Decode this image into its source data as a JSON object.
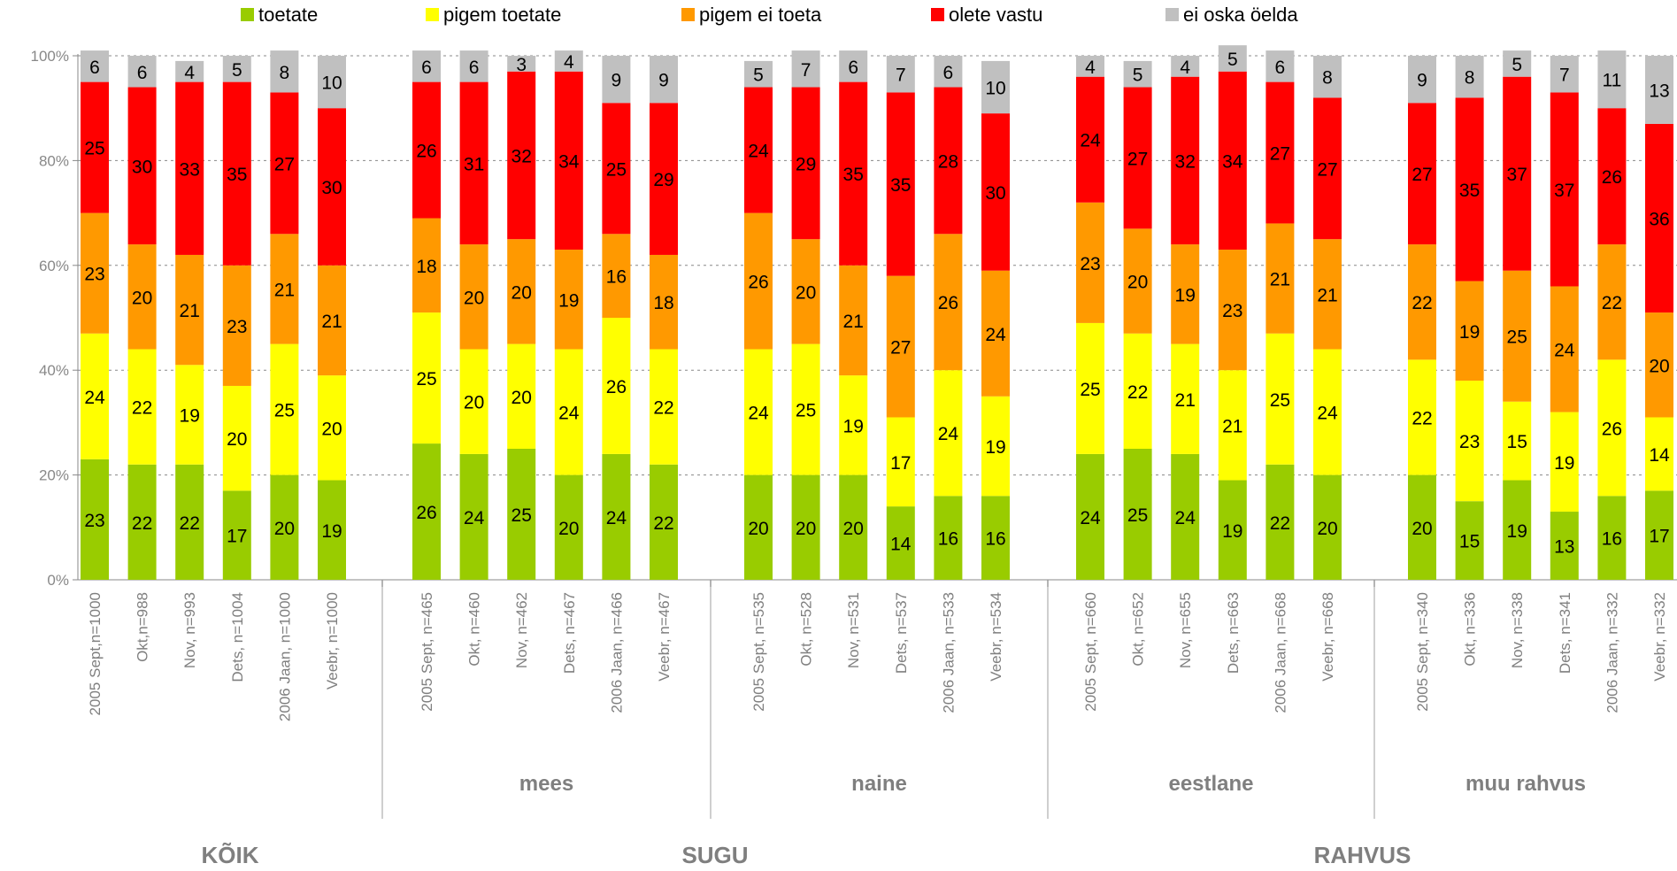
{
  "chart_data": {
    "type": "bar",
    "stacked": true,
    "percent": true,
    "ylim": [
      0,
      100
    ],
    "y_ticks": [
      "0%",
      "20%",
      "40%",
      "60%",
      "80%",
      "100%"
    ],
    "y_tick_values": [
      0,
      20,
      40,
      60,
      80,
      100
    ],
    "grid": true,
    "legend_position": "top",
    "legend": [
      {
        "name": "toetate",
        "color": "#99cc00"
      },
      {
        "name": "pigem toetate",
        "color": "#ffff00"
      },
      {
        "name": "pigem ei toeta",
        "color": "#ff9900"
      },
      {
        "name": "olete vastu",
        "color": "#ff0000"
      },
      {
        "name": "ei oska öelda",
        "color": "#c0c0c0"
      }
    ],
    "groups": [
      {
        "top_label": "KÕIK",
        "sub_label": "",
        "categories": [
          "2005 Sept,n=1000",
          "Okt,n=988",
          "Nov, n=993",
          "Dets, n=1004",
          "2006 Jaan, n=1000",
          "Veebr, n=1000"
        ],
        "values": [
          [
            23,
            24,
            23,
            25,
            6
          ],
          [
            22,
            22,
            20,
            30,
            6
          ],
          [
            22,
            19,
            21,
            33,
            4
          ],
          [
            17,
            20,
            23,
            35,
            5
          ],
          [
            20,
            25,
            21,
            27,
            8
          ],
          [
            19,
            20,
            21,
            30,
            10
          ]
        ]
      },
      {
        "top_label": "SUGU",
        "sub_label": "mees",
        "categories": [
          "2005 Sept, n=465",
          "Okt, n=460",
          "Nov, n=462",
          "Dets, n=467",
          "2006 Jaan, n=466",
          "Veebr, n=467"
        ],
        "values": [
          [
            26,
            25,
            18,
            26,
            6
          ],
          [
            24,
            20,
            20,
            31,
            6
          ],
          [
            25,
            20,
            20,
            32,
            3
          ],
          [
            20,
            24,
            19,
            34,
            4
          ],
          [
            24,
            26,
            16,
            25,
            9
          ],
          [
            22,
            22,
            18,
            29,
            9
          ]
        ]
      },
      {
        "top_label": "",
        "sub_label": "naine",
        "categories": [
          "2005 Sept, n=535",
          "Okt, n=528",
          "Nov, n=531",
          "Dets, n=537",
          "2006 Jaan, n=533",
          "Veebr, n=534"
        ],
        "values": [
          [
            20,
            24,
            26,
            24,
            5
          ],
          [
            20,
            25,
            20,
            29,
            7
          ],
          [
            20,
            19,
            21,
            35,
            6
          ],
          [
            14,
            17,
            27,
            35,
            7
          ],
          [
            16,
            24,
            26,
            28,
            6
          ],
          [
            16,
            19,
            24,
            30,
            10
          ]
        ]
      },
      {
        "top_label": "RAHVUS",
        "sub_label": "eestlane",
        "categories": [
          "2005 Sept, n=660",
          "Okt, n=652",
          "Nov, n=655",
          "Dets, n=663",
          "2006 Jaan, n=668",
          "Veebr, n=668"
        ],
        "values": [
          [
            24,
            25,
            23,
            24,
            4
          ],
          [
            25,
            22,
            20,
            27,
            5
          ],
          [
            24,
            21,
            19,
            32,
            4
          ],
          [
            19,
            21,
            23,
            34,
            5
          ],
          [
            22,
            25,
            21,
            27,
            6
          ],
          [
            20,
            24,
            21,
            27,
            8
          ]
        ]
      },
      {
        "top_label": "",
        "sub_label": "muu rahvus",
        "categories": [
          "2005 Sept, n=340",
          "Okt, n=336",
          "Nov, n=338",
          "Dets, n=341",
          "2006 Jaan, n=332",
          "Veebr, n=332"
        ],
        "values": [
          [
            20,
            22,
            22,
            27,
            9
          ],
          [
            15,
            23,
            19,
            35,
            8
          ],
          [
            19,
            15,
            25,
            37,
            5
          ],
          [
            13,
            19,
            24,
            37,
            7
          ],
          [
            16,
            26,
            22,
            26,
            11
          ],
          [
            17,
            14,
            20,
            36,
            13
          ]
        ]
      }
    ]
  }
}
